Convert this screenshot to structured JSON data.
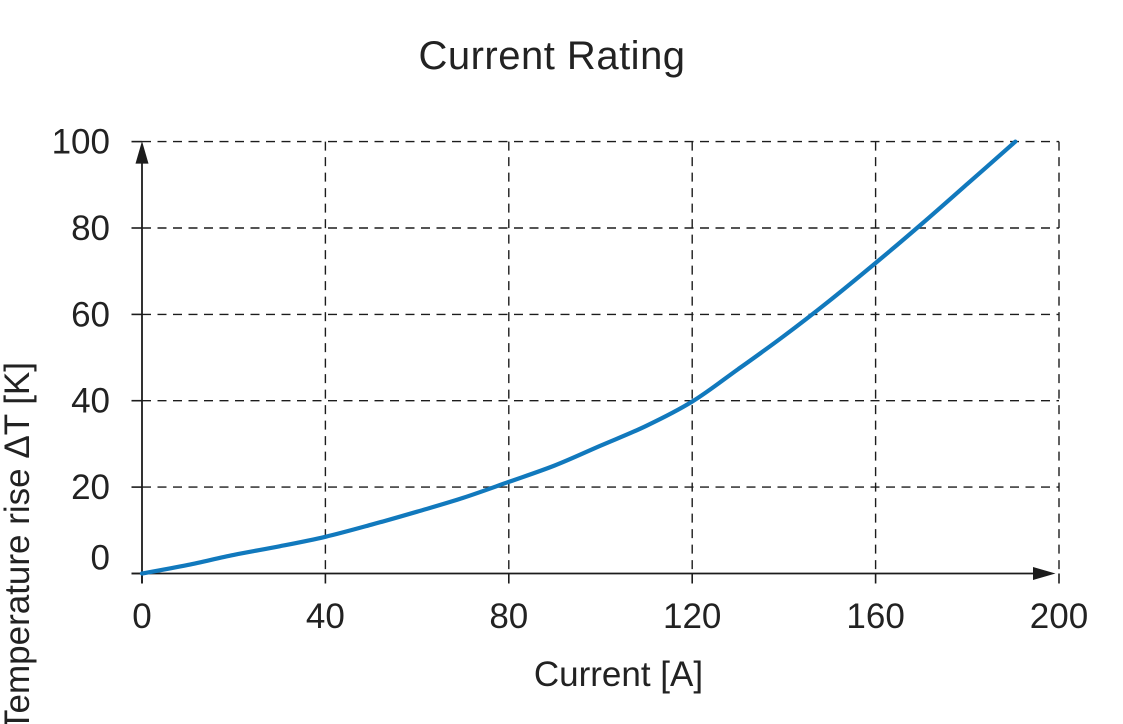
{
  "title": "Current Rating",
  "chart_data": {
    "type": "line",
    "title": "Current Rating",
    "xlabel": "Current [A]",
    "ylabel": "Temperature rise ΔT [K]",
    "xlim": [
      0,
      200
    ],
    "ylim": [
      0,
      100
    ],
    "x_ticks": [
      0,
      40,
      80,
      120,
      160,
      200
    ],
    "y_ticks": [
      0,
      20,
      40,
      60,
      80,
      100
    ],
    "grid": "dashed",
    "legend": "none",
    "axis_style": "arrows",
    "series": [
      {
        "name": "temperature rise vs current",
        "color": "#1179bd",
        "x": [
          0,
          10,
          20,
          30,
          40,
          50,
          60,
          70,
          80,
          90,
          100,
          110,
          120,
          130,
          140,
          150,
          160,
          170,
          180,
          190.5
        ],
        "y": [
          0,
          2.0,
          4.3,
          6.3,
          8.5,
          11.3,
          14.3,
          17.5,
          21.2,
          25.0,
          29.6,
          34.2,
          39.8,
          47.3,
          55.0,
          63.2,
          71.9,
          80.9,
          90.2,
          100
        ]
      }
    ]
  },
  "colors": {
    "curve": "#1179bd",
    "axis": "#1c1c1c",
    "grid": "#1c1c1c",
    "text": "#222222",
    "background": "#ffffff"
  }
}
